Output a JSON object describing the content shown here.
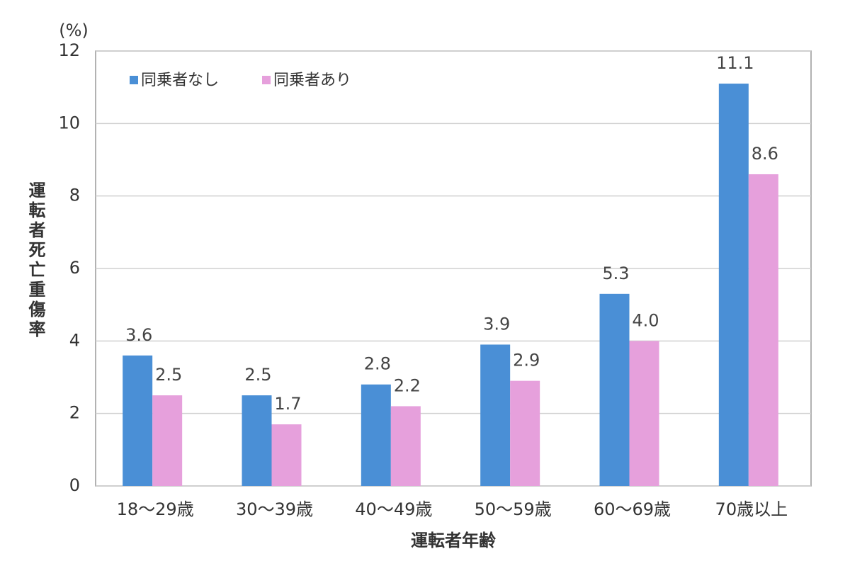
{
  "chart_data": {
    "type": "bar",
    "y_unit": "(%)",
    "y_label": "運転者死亡重傷率",
    "x_label": "運転者年齢",
    "categories": [
      "18～29歳",
      "30～39歳",
      "40～49歳",
      "50～59歳",
      "60～69歳",
      "70歳以上"
    ],
    "series": [
      {
        "name": "同乗者なし",
        "color": "#4a8fd6",
        "values": [
          3.6,
          2.5,
          2.8,
          3.9,
          5.3,
          11.1
        ],
        "value_labels": [
          "3.6",
          "2.5",
          "2.8",
          "3.9",
          "5.3",
          "11.1"
        ]
      },
      {
        "name": "同乗者あり",
        "color": "#e6a0dc",
        "values": [
          2.5,
          1.7,
          2.2,
          2.9,
          4.0,
          8.6
        ],
        "value_labels": [
          "2.5",
          "1.7",
          "2.2",
          "2.9",
          "4.0",
          "8.6"
        ]
      }
    ],
    "ylim": [
      0,
      12
    ],
    "yticks": [
      0,
      2,
      4,
      6,
      8,
      10,
      12
    ],
    "grid": true,
    "legend": "top-left"
  }
}
